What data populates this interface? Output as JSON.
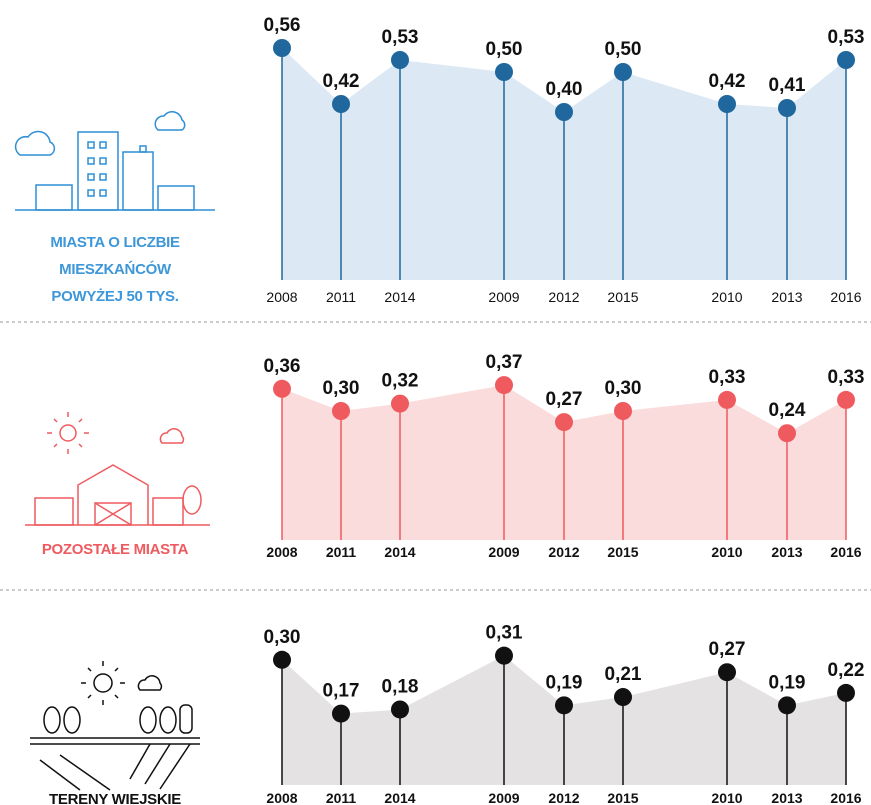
{
  "chart_data": [
    {
      "type": "area",
      "title": "MIASTA O LICZBIE MIESZKAŃCÓW POWYŻEJ 50 TYS.",
      "categories": [
        "2008",
        "2011",
        "2014",
        "2009",
        "2012",
        "2015",
        "2010",
        "2013",
        "2016"
      ],
      "values": [
        0.56,
        0.42,
        0.53,
        0.5,
        0.4,
        0.5,
        0.42,
        0.41,
        0.53
      ],
      "value_labels": [
        "0,56",
        "0,42",
        "0,53",
        "0,50",
        "0,40",
        "0,50",
        "0,42",
        "0,41",
        "0,53"
      ],
      "color": "#1f679c",
      "area_color": "#dce9f5"
    },
    {
      "type": "area",
      "title": "POZOSTAŁE MIASTA",
      "categories": [
        "2008",
        "2011",
        "2014",
        "2009",
        "2012",
        "2015",
        "2010",
        "2013",
        "2016"
      ],
      "values": [
        0.36,
        0.3,
        0.32,
        0.37,
        0.27,
        0.3,
        0.33,
        0.24,
        0.33
      ],
      "value_labels": [
        "0,36",
        "0,30",
        "0,32",
        "0,37",
        "0,27",
        "0,30",
        "0,33",
        "0,24",
        "0,33"
      ],
      "color": "#ef5a5f",
      "area_color": "#fbdcdc"
    },
    {
      "type": "area",
      "title": "TERENY WIEJSKIE",
      "categories": [
        "2008",
        "2011",
        "2014",
        "2009",
        "2012",
        "2015",
        "2010",
        "2013",
        "2016"
      ],
      "values": [
        0.3,
        0.17,
        0.18,
        0.31,
        0.19,
        0.21,
        0.27,
        0.19,
        0.22
      ],
      "value_labels": [
        "0,30",
        "0,17",
        "0,18",
        "0,31",
        "0,19",
        "0,21",
        "0,27",
        "0,19",
        "0,22"
      ],
      "color": "#111111",
      "area_color": "#e4e2e2"
    }
  ]
}
